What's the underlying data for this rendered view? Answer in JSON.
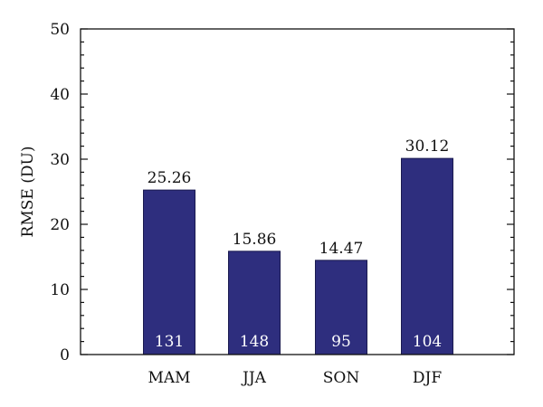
{
  "chart_data": {
    "type": "bar",
    "categories": [
      "MAM",
      "JJA",
      "SON",
      "DJF"
    ],
    "values": [
      25.26,
      15.86,
      14.47,
      30.12
    ],
    "value_labels": [
      "25.26",
      "15.86",
      "14.47",
      "30.12"
    ],
    "counts": [
      "131",
      "148",
      "95",
      "104"
    ],
    "title": "",
    "xlabel": "",
    "ylabel": "RMSE (DU)",
    "ylim": [
      0,
      50
    ],
    "yticks": [
      0,
      10,
      20,
      30,
      40,
      50
    ],
    "grid": false,
    "legend": "none",
    "bar_color": "#2e2e7e"
  }
}
